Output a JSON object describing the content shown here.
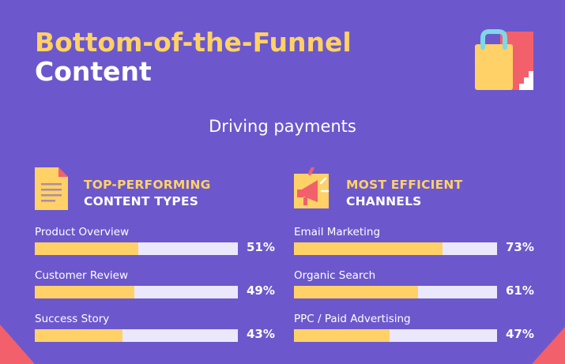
{
  "title": {
    "line1": "Bottom-of-the-Funnel",
    "line2": "Content"
  },
  "subtitle": "Driving payments",
  "colors": {
    "background": "#6c58cc",
    "accent_yellow": "#ffd166",
    "track": "#ebe8fb",
    "coral": "#f2606b",
    "white": "#ffffff"
  },
  "icons": {
    "hero": "shopping-bag-icon",
    "left_section": "document-icon",
    "right_section": "megaphone-icon"
  },
  "chart_data": [
    {
      "type": "bar",
      "title": "TOP-PERFORMING CONTENT TYPES",
      "title_line1": "TOP-PERFORMING",
      "title_line2": "CONTENT TYPES",
      "categories": [
        "Product Overview",
        "Customer Review",
        "Success Story"
      ],
      "values": [
        51,
        49,
        43
      ],
      "value_labels": [
        "51%",
        "49%",
        "43%"
      ],
      "ylim": [
        0,
        100
      ]
    },
    {
      "type": "bar",
      "title": "MOST EFFICIENT CHANNELS",
      "title_line1": "MOST EFFICIENT",
      "title_line2": "CHANNELS",
      "categories": [
        "Email Marketing",
        "Organic Search",
        "PPC / Paid Advertising"
      ],
      "values": [
        73,
        61,
        47
      ],
      "value_labels": [
        "73%",
        "61%",
        "47%"
      ],
      "ylim": [
        0,
        100
      ]
    }
  ]
}
